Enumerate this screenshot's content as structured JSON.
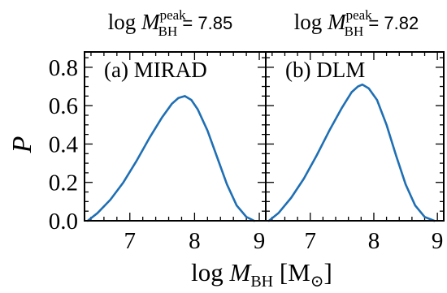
{
  "chart_data": [
    {
      "type": "line",
      "panel_label": "(a) MIRAD",
      "peak_title": {
        "prefix": "log ",
        "var": "M",
        "sub": "BH",
        "sup": "peak",
        "equals": " = ",
        "value": "7.85"
      },
      "xlim": [
        6.3,
        9.1
      ],
      "ylim": [
        0.0,
        0.88
      ],
      "x_ticks": [
        "7",
        "8",
        "9"
      ],
      "y_ticks": [
        "0.0",
        "0.2",
        "0.4",
        "0.6",
        "0.8"
      ],
      "series": [
        {
          "color": "#1f6fb4",
          "x": [
            6.35,
            6.5,
            6.7,
            6.9,
            7.1,
            7.3,
            7.5,
            7.65,
            7.75,
            7.85,
            7.95,
            8.05,
            8.2,
            8.35,
            8.5,
            8.65,
            8.8,
            8.92
          ],
          "y": [
            0.0,
            0.04,
            0.11,
            0.2,
            0.31,
            0.43,
            0.54,
            0.61,
            0.64,
            0.65,
            0.63,
            0.58,
            0.47,
            0.33,
            0.19,
            0.08,
            0.02,
            0.0
          ]
        }
      ]
    },
    {
      "type": "line",
      "panel_label": "(b) DLM",
      "peak_title": {
        "prefix": "log ",
        "var": "M",
        "sub": "BH",
        "sup": "peak",
        "equals": " = ",
        "value": "7.82"
      },
      "xlim": [
        6.3,
        9.1
      ],
      "ylim": [
        0.0,
        0.88
      ],
      "x_ticks": [
        "7",
        "8",
        "9"
      ],
      "y_ticks": [],
      "series": [
        {
          "color": "#1f6fb4",
          "x": [
            6.35,
            6.5,
            6.7,
            6.9,
            7.1,
            7.3,
            7.5,
            7.65,
            7.75,
            7.82,
            7.92,
            8.05,
            8.2,
            8.35,
            8.5,
            8.65,
            8.8,
            8.95
          ],
          "y": [
            0.0,
            0.04,
            0.12,
            0.22,
            0.34,
            0.47,
            0.59,
            0.67,
            0.7,
            0.71,
            0.69,
            0.63,
            0.5,
            0.34,
            0.19,
            0.08,
            0.02,
            0.0
          ]
        }
      ]
    }
  ],
  "ylabel": "P",
  "xlabel": {
    "prefix": "log ",
    "var": "M",
    "sub": "BH",
    "unit_open": " [M",
    "unit_sub": "⊙",
    "unit_close": "]"
  }
}
